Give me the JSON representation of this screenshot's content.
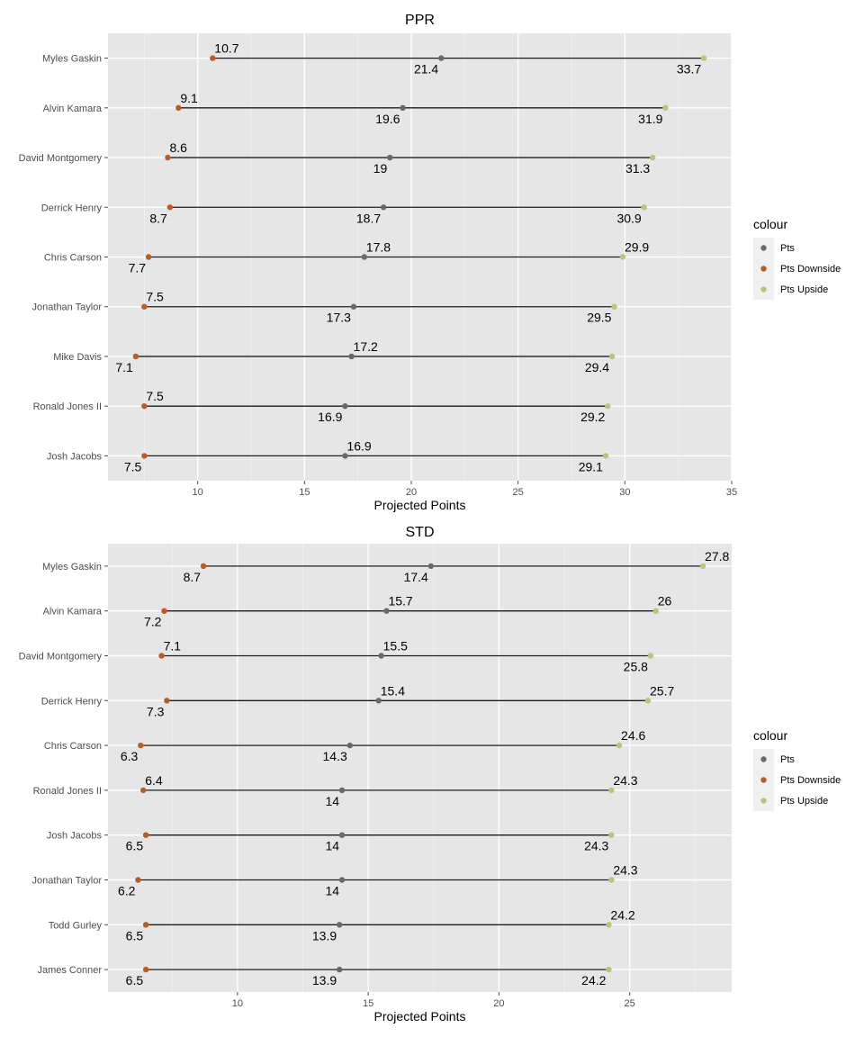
{
  "chart_data": [
    {
      "type": "dumbbell",
      "title": "PPR",
      "xlabel": "Projected Points",
      "ylabel": "",
      "xlim": [
        5.8,
        35
      ],
      "xticks": [
        10,
        15,
        20,
        25,
        30,
        35
      ],
      "grid": true,
      "legend": {
        "title": "colour",
        "position": "right",
        "entries": [
          {
            "label": "Pts",
            "color": "#5f6e68"
          },
          {
            "label": "Pts Downside",
            "color": "#b85c28"
          },
          {
            "label": "Pts Upside",
            "color": "#c2c07c"
          }
        ]
      },
      "players": [
        {
          "name": "Myles Gaskin",
          "downside": 10.7,
          "pts": 21.4,
          "upside": 33.7,
          "label_pos": {
            "downside": "above",
            "pts": "below",
            "upside": "below"
          }
        },
        {
          "name": "Alvin Kamara",
          "downside": 9.1,
          "pts": 19.6,
          "upside": 31.9,
          "label_pos": {
            "downside": "above",
            "pts": "below",
            "upside": "below"
          }
        },
        {
          "name": "David Montgomery",
          "downside": 8.6,
          "pts": 19,
          "upside": 31.3,
          "label_pos": {
            "downside": "above",
            "pts": "below",
            "upside": "below"
          }
        },
        {
          "name": "Derrick Henry",
          "downside": 8.7,
          "pts": 18.7,
          "upside": 30.9,
          "label_pos": {
            "downside": "below",
            "pts": "below",
            "upside": "below"
          }
        },
        {
          "name": "Chris Carson",
          "downside": 7.7,
          "pts": 17.8,
          "upside": 29.9,
          "label_pos": {
            "downside": "below",
            "pts": "above",
            "upside": "above"
          }
        },
        {
          "name": "Jonathan Taylor",
          "downside": 7.5,
          "pts": 17.3,
          "upside": 29.5,
          "label_pos": {
            "downside": "above",
            "pts": "below",
            "upside": "below"
          }
        },
        {
          "name": "Mike Davis",
          "downside": 7.1,
          "pts": 17.2,
          "upside": 29.4,
          "label_pos": {
            "downside": "below",
            "pts": "above",
            "upside": "below"
          }
        },
        {
          "name": "Ronald Jones II",
          "downside": 7.5,
          "pts": 16.9,
          "upside": 29.2,
          "label_pos": {
            "downside": "above",
            "pts": "below",
            "upside": "below"
          }
        },
        {
          "name": "Josh Jacobs",
          "downside": 7.5,
          "pts": 16.9,
          "upside": 29.1,
          "label_pos": {
            "downside": "below",
            "pts": "above",
            "upside": "below"
          }
        }
      ]
    },
    {
      "type": "dumbbell",
      "title": "STD",
      "xlabel": "Projected Points",
      "ylabel": "",
      "xlim": [
        5.05,
        28.9
      ],
      "xticks": [
        10,
        15,
        20,
        25
      ],
      "grid": true,
      "legend": {
        "title": "colour",
        "position": "right",
        "entries": [
          {
            "label": "Pts",
            "color": "#5f6e68"
          },
          {
            "label": "Pts Downside",
            "color": "#b85c28"
          },
          {
            "label": "Pts Upside",
            "color": "#c2c07c"
          }
        ]
      },
      "players": [
        {
          "name": "Myles Gaskin",
          "downside": 8.7,
          "pts": 17.4,
          "upside": 27.8,
          "label_pos": {
            "downside": "below",
            "pts": "below",
            "upside": "above"
          }
        },
        {
          "name": "Alvin Kamara",
          "downside": 7.2,
          "pts": 15.7,
          "upside": 26,
          "label_pos": {
            "downside": "below",
            "pts": "above",
            "upside": "above"
          }
        },
        {
          "name": "David Montgomery",
          "downside": 7.1,
          "pts": 15.5,
          "upside": 25.8,
          "label_pos": {
            "downside": "above",
            "pts": "above",
            "upside": "below"
          }
        },
        {
          "name": "Derrick Henry",
          "downside": 7.3,
          "pts": 15.4,
          "upside": 25.7,
          "label_pos": {
            "downside": "below",
            "pts": "above",
            "upside": "above"
          }
        },
        {
          "name": "Chris Carson",
          "downside": 6.3,
          "pts": 14.3,
          "upside": 24.6,
          "label_pos": {
            "downside": "below",
            "pts": "below",
            "upside": "above"
          }
        },
        {
          "name": "Ronald Jones II",
          "downside": 6.4,
          "pts": 14,
          "upside": 24.3,
          "label_pos": {
            "downside": "above",
            "pts": "below",
            "upside": "above"
          }
        },
        {
          "name": "Josh Jacobs",
          "downside": 6.5,
          "pts": 14,
          "upside": 24.3,
          "label_pos": {
            "downside": "below",
            "pts": "below",
            "upside": "below"
          }
        },
        {
          "name": "Jonathan Taylor",
          "downside": 6.2,
          "pts": 14,
          "upside": 24.3,
          "label_pos": {
            "downside": "below",
            "pts": "below",
            "upside": "above"
          }
        },
        {
          "name": "Todd Gurley",
          "downside": 6.5,
          "pts": 13.9,
          "upside": 24.2,
          "label_pos": {
            "downside": "below",
            "pts": "below",
            "upside": "above"
          }
        },
        {
          "name": "James Conner",
          "downside": 6.5,
          "pts": 13.9,
          "upside": 24.2,
          "label_pos": {
            "downside": "below",
            "pts": "below",
            "upside": "below"
          }
        }
      ]
    }
  ]
}
